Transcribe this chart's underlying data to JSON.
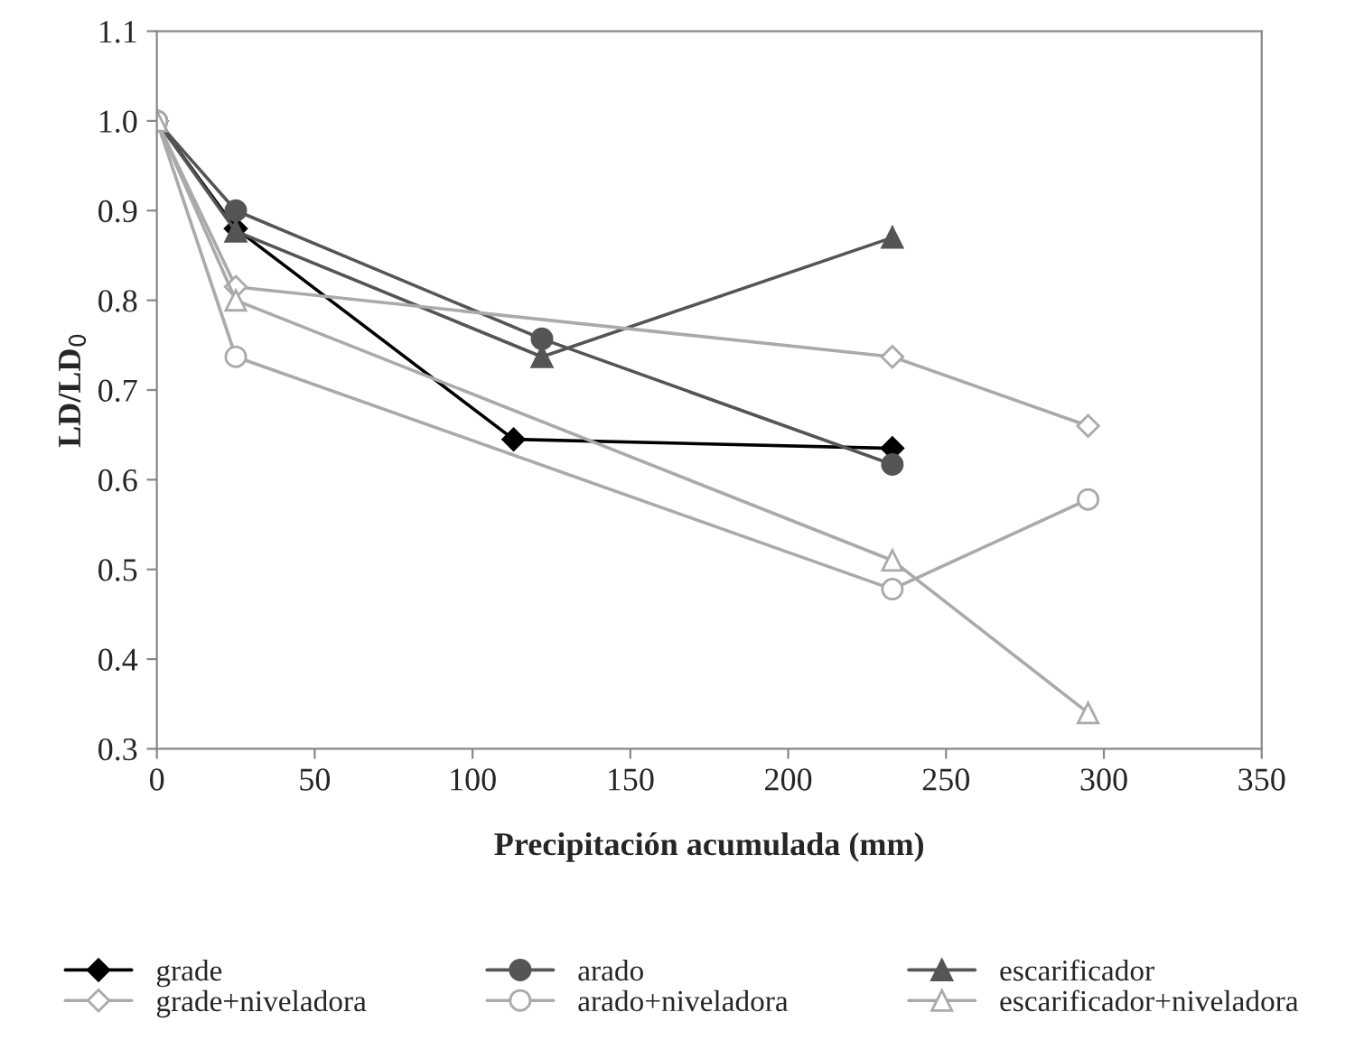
{
  "chart_data": {
    "type": "line",
    "xlabel": "Precipitación acumulada (mm)",
    "ylabel": "LD/LD$_{0}$",
    "xlim": [
      0,
      350
    ],
    "xticks": [
      0,
      50,
      100,
      150,
      200,
      250,
      300,
      350
    ],
    "ylim": [
      0.3,
      1.1
    ],
    "yticks": [
      {
        "value": 0.3,
        "label": "0.3"
      },
      {
        "value": 0.4,
        "label": "0.4"
      },
      {
        "value": 0.5,
        "label": "0.5"
      },
      {
        "value": 0.6,
        "label": "0.6"
      },
      {
        "value": 0.7,
        "label": "0.7"
      },
      {
        "value": 0.8,
        "label": "0.8"
      },
      {
        "value": 0.9,
        "label": "0.9"
      },
      {
        "value": 1.0,
        "label": "1.0"
      },
      {
        "value": 1.1,
        "label": "1.1"
      }
    ],
    "grid": false,
    "legend": "bottom",
    "line_style": "solid",
    "series": [
      {
        "name": "grade",
        "color": "#000000",
        "marker": "diamond",
        "x": [
          0,
          25,
          113,
          233
        ],
        "values": [
          1.0,
          0.88,
          0.645,
          0.635
        ]
      },
      {
        "name": "arado",
        "color": "#555555",
        "marker": "circle",
        "x": [
          0,
          25,
          122,
          233
        ],
        "values": [
          1.0,
          0.9,
          0.757,
          0.617
        ]
      },
      {
        "name": "escarificador",
        "color": "#555555",
        "marker": "triangle",
        "x": [
          0,
          25,
          122,
          233
        ],
        "values": [
          1.0,
          0.877,
          0.737,
          0.87
        ]
      },
      {
        "name": "grade+niveladora",
        "color": "#aaaaaa",
        "marker": "diamond",
        "x": [
          0,
          25,
          233,
          295
        ],
        "values": [
          1.0,
          0.815,
          0.737,
          0.66
        ]
      },
      {
        "name": "arado+niveladora",
        "color": "#aaaaaa",
        "marker": "circle",
        "x": [
          0,
          25,
          233,
          295
        ],
        "values": [
          1.0,
          0.737,
          0.478,
          0.578
        ]
      },
      {
        "name": "escarificador+niveladora",
        "color": "#aaaaaa",
        "marker": "triangle",
        "x": [
          0,
          25,
          233,
          295
        ],
        "values": [
          1.0,
          0.8,
          0.51,
          0.34
        ]
      }
    ]
  }
}
